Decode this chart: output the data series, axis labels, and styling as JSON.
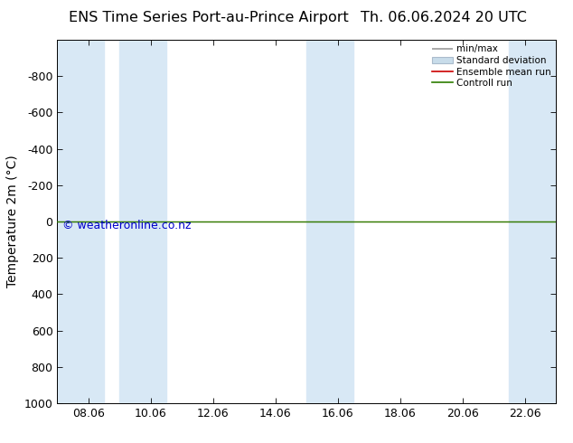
{
  "title_left": "ENS Time Series Port-au-Prince Airport",
  "title_right": "Th. 06.06.2024 20 UTC",
  "ylabel": "Temperature 2m (°C)",
  "xtick_labels": [
    "08.06",
    "10.06",
    "12.06",
    "14.06",
    "16.06",
    "18.06",
    "20.06",
    "22.06"
  ],
  "xtick_positions": [
    8,
    10,
    12,
    14,
    16,
    18,
    20,
    22
  ],
  "xlim": [
    7,
    23
  ],
  "ylim_top": -1000,
  "ylim_bottom": 1000,
  "ytick_values": [
    -800,
    -600,
    -400,
    -200,
    0,
    200,
    400,
    600,
    800,
    1000
  ],
  "background_color": "#ffffff",
  "plot_bg_color": "#ffffff",
  "shaded_bands": [
    [
      7.0,
      8.5
    ],
    [
      9.0,
      10.5
    ],
    [
      15.0,
      16.5
    ],
    [
      21.5,
      23.0
    ]
  ],
  "shaded_color": "#d8e8f5",
  "horizontal_line_y": 0,
  "green_line_color": "#2e7d00",
  "red_line_color": "#cc0000",
  "watermark": "© weatheronline.co.nz",
  "watermark_color": "#0000cc",
  "legend_labels": [
    "min/max",
    "Standard deviation",
    "Ensemble mean run",
    "Controll run"
  ],
  "title_fontsize": 11.5,
  "axis_label_fontsize": 10,
  "tick_fontsize": 9,
  "watermark_fontsize": 9
}
